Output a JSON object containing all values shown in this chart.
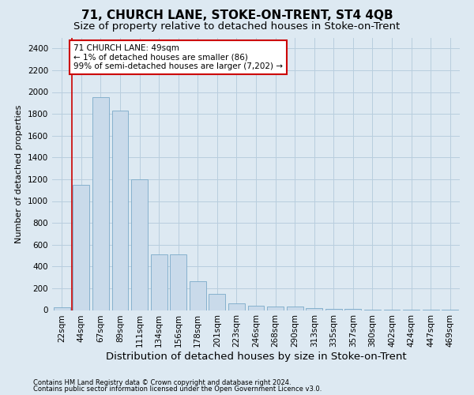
{
  "title": "71, CHURCH LANE, STOKE-ON-TRENT, ST4 4QB",
  "subtitle": "Size of property relative to detached houses in Stoke-on-Trent",
  "xlabel": "Distribution of detached houses by size in Stoke-on-Trent",
  "ylabel": "Number of detached properties",
  "categories": [
    "22sqm",
    "44sqm",
    "67sqm",
    "89sqm",
    "111sqm",
    "134sqm",
    "156sqm",
    "178sqm",
    "201sqm",
    "223sqm",
    "246sqm",
    "268sqm",
    "290sqm",
    "313sqm",
    "335sqm",
    "357sqm",
    "380sqm",
    "402sqm",
    "424sqm",
    "447sqm",
    "469sqm"
  ],
  "values": [
    25,
    1150,
    1950,
    1830,
    1200,
    510,
    510,
    265,
    145,
    65,
    40,
    35,
    30,
    15,
    10,
    10,
    5,
    5,
    5,
    5,
    5
  ],
  "bar_color": "#c9daea",
  "bar_edge_color": "#7aaac8",
  "vline_color": "#cc0000",
  "vline_x": 0.5,
  "annotation_text": "71 CHURCH LANE: 49sqm\n← 1% of detached houses are smaller (86)\n99% of semi-detached houses are larger (7,202) →",
  "annotation_box_facecolor": "#ffffff",
  "annotation_box_edgecolor": "#cc0000",
  "grid_color": "#b8cede",
  "background_color": "#dde9f2",
  "ylim": [
    0,
    2500
  ],
  "yticks": [
    0,
    200,
    400,
    600,
    800,
    1000,
    1200,
    1400,
    1600,
    1800,
    2000,
    2200,
    2400
  ],
  "footer1": "Contains HM Land Registry data © Crown copyright and database right 2024.",
  "footer2": "Contains public sector information licensed under the Open Government Licence v3.0.",
  "title_fontsize": 11,
  "subtitle_fontsize": 9.5,
  "xlabel_fontsize": 9.5,
  "ylabel_fontsize": 8,
  "tick_fontsize": 7.5,
  "annotation_fontsize": 7.5,
  "footer_fontsize": 6
}
